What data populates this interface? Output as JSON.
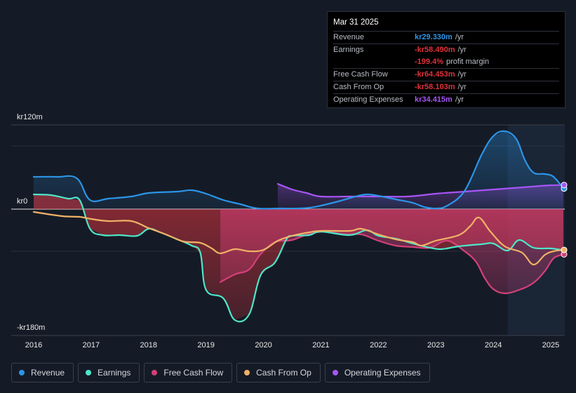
{
  "tooltip": {
    "date": "Mar 31 2025",
    "rows": [
      {
        "label": "Revenue",
        "value": "kr29.330m",
        "unit": "/yr",
        "color": "#2b95e8"
      },
      {
        "label": "Earnings",
        "value": "-kr58.490m",
        "unit": "/yr",
        "color": "#e0323c"
      },
      {
        "label": "",
        "value": "-199.4%",
        "unit": "profit margin",
        "color": "#e0323c"
      },
      {
        "label": "Free Cash Flow",
        "value": "-kr64.453m",
        "unit": "/yr",
        "color": "#e0323c"
      },
      {
        "label": "Cash From Op",
        "value": "-kr58.103m",
        "unit": "/yr",
        "color": "#e0323c"
      },
      {
        "label": "Operating Expenses",
        "value": "kr34.415m",
        "unit": "/yr",
        "color": "#a855f7"
      }
    ]
  },
  "legend": [
    {
      "label": "Revenue",
      "color": "#2b95e8"
    },
    {
      "label": "Earnings",
      "color": "#4ee6c8"
    },
    {
      "label": "Free Cash Flow",
      "color": "#d4407a"
    },
    {
      "label": "Cash From Op",
      "color": "#f0b266"
    },
    {
      "label": "Operating Expenses",
      "color": "#a855f7"
    }
  ],
  "chart_data": {
    "type": "line",
    "title": "",
    "xlabel": "",
    "ylabel": "",
    "ylim": [
      -180,
      120
    ],
    "xlim": [
      2015.85,
      2025.3
    ],
    "y_tick_labels": [
      {
        "value": 120,
        "label": "kr120m"
      },
      {
        "value": 0,
        "label": "kr0"
      },
      {
        "value": -180,
        "label": "-kr180m"
      }
    ],
    "x_tick_labels": [
      {
        "value": 2016,
        "label": "2016"
      },
      {
        "value": 2017,
        "label": "2017"
      },
      {
        "value": 2018,
        "label": "2018"
      },
      {
        "value": 2019,
        "label": "2019"
      },
      {
        "value": 2020,
        "label": "2020"
      },
      {
        "value": 2021,
        "label": "2021"
      },
      {
        "value": 2022,
        "label": "2022"
      },
      {
        "value": 2023,
        "label": "2023"
      },
      {
        "value": 2024,
        "label": "2024"
      },
      {
        "value": 2025,
        "label": "2025"
      }
    ],
    "highlight_start": 2024.25,
    "series": [
      {
        "name": "Revenue",
        "color": "#2b95e8",
        "fill": true,
        "points": [
          [
            2016.0,
            46
          ],
          [
            2016.4,
            46
          ],
          [
            2016.75,
            44
          ],
          [
            2016.98,
            13
          ],
          [
            2017.3,
            15
          ],
          [
            2017.7,
            18
          ],
          [
            2018.0,
            23
          ],
          [
            2018.5,
            25
          ],
          [
            2018.75,
            27
          ],
          [
            2019.0,
            22
          ],
          [
            2019.3,
            13
          ],
          [
            2019.6,
            7
          ],
          [
            2019.9,
            1
          ],
          [
            2020.3,
            1
          ],
          [
            2020.6,
            1
          ],
          [
            2020.8,
            2
          ],
          [
            2021.0,
            5
          ],
          [
            2021.3,
            11
          ],
          [
            2021.6,
            18
          ],
          [
            2021.8,
            21
          ],
          [
            2022.0,
            19
          ],
          [
            2022.3,
            14
          ],
          [
            2022.6,
            9
          ],
          [
            2022.8,
            3
          ],
          [
            2023.0,
            1
          ],
          [
            2023.2,
            5
          ],
          [
            2023.5,
            26
          ],
          [
            2023.8,
            78
          ],
          [
            2024.0,
            104
          ],
          [
            2024.2,
            111
          ],
          [
            2024.4,
            100
          ],
          [
            2024.55,
            70
          ],
          [
            2024.7,
            52
          ],
          [
            2024.9,
            50
          ],
          [
            2025.05,
            46
          ],
          [
            2025.22,
            29.3
          ]
        ]
      },
      {
        "name": "Earnings",
        "color": "#4ee6c8",
        "fill": true,
        "points": [
          [
            2016.0,
            21
          ],
          [
            2016.3,
            20
          ],
          [
            2016.6,
            15
          ],
          [
            2016.8,
            13
          ],
          [
            2016.98,
            -28
          ],
          [
            2017.2,
            -37
          ],
          [
            2017.5,
            -37
          ],
          [
            2017.8,
            -38
          ],
          [
            2018.0,
            -28
          ],
          [
            2018.2,
            -33
          ],
          [
            2018.5,
            -43
          ],
          [
            2018.75,
            -52
          ],
          [
            2018.9,
            -62
          ],
          [
            2019.0,
            -115
          ],
          [
            2019.3,
            -127
          ],
          [
            2019.5,
            -158
          ],
          [
            2019.75,
            -150
          ],
          [
            2019.95,
            -94
          ],
          [
            2020.2,
            -76
          ],
          [
            2020.4,
            -43
          ],
          [
            2020.5,
            -38
          ],
          [
            2020.8,
            -37
          ],
          [
            2021.0,
            -32
          ],
          [
            2021.5,
            -37
          ],
          [
            2021.8,
            -30
          ],
          [
            2022.0,
            -38
          ],
          [
            2022.3,
            -42
          ],
          [
            2022.6,
            -49
          ],
          [
            2022.9,
            -55
          ],
          [
            2023.1,
            -57
          ],
          [
            2023.4,
            -53
          ],
          [
            2023.8,
            -50
          ],
          [
            2024.0,
            -49
          ],
          [
            2024.25,
            -59
          ],
          [
            2024.45,
            -44
          ],
          [
            2024.7,
            -55
          ],
          [
            2025.0,
            -56
          ],
          [
            2025.22,
            -58.5
          ]
        ]
      },
      {
        "name": "Free Cash Flow",
        "color": "#d4407a",
        "fill": true,
        "points": [
          [
            2019.25,
            -104
          ],
          [
            2019.5,
            -93
          ],
          [
            2019.75,
            -86
          ],
          [
            2019.95,
            -64
          ],
          [
            2020.2,
            -47
          ],
          [
            2020.5,
            -44
          ],
          [
            2020.8,
            -35
          ],
          [
            2021.1,
            -32
          ],
          [
            2021.4,
            -36
          ],
          [
            2021.7,
            -36
          ],
          [
            2022.0,
            -45
          ],
          [
            2022.3,
            -52
          ],
          [
            2022.6,
            -54
          ],
          [
            2022.9,
            -55
          ],
          [
            2023.2,
            -45
          ],
          [
            2023.5,
            -60
          ],
          [
            2023.7,
            -75
          ],
          [
            2023.85,
            -98
          ],
          [
            2024.0,
            -114
          ],
          [
            2024.2,
            -120
          ],
          [
            2024.45,
            -115
          ],
          [
            2024.7,
            -105
          ],
          [
            2024.9,
            -88
          ],
          [
            2025.05,
            -70
          ],
          [
            2025.22,
            -64.5
          ]
        ]
      },
      {
        "name": "Cash From Op",
        "color": "#f0b266",
        "fill": false,
        "points": [
          [
            2016.0,
            -4
          ],
          [
            2016.5,
            -10
          ],
          [
            2016.8,
            -11
          ],
          [
            2017.0,
            -14
          ],
          [
            2017.3,
            -17
          ],
          [
            2017.7,
            -17
          ],
          [
            2018.0,
            -27
          ],
          [
            2018.3,
            -36
          ],
          [
            2018.6,
            -46
          ],
          [
            2018.9,
            -48
          ],
          [
            2019.1,
            -56
          ],
          [
            2019.25,
            -63
          ],
          [
            2019.5,
            -57
          ],
          [
            2019.75,
            -60
          ],
          [
            2020.0,
            -58
          ],
          [
            2020.25,
            -45
          ],
          [
            2020.5,
            -38
          ],
          [
            2020.8,
            -33
          ],
          [
            2021.0,
            -31
          ],
          [
            2021.5,
            -31
          ],
          [
            2021.7,
            -28
          ],
          [
            2022.0,
            -36
          ],
          [
            2022.3,
            -43
          ],
          [
            2022.6,
            -47
          ],
          [
            2022.75,
            -52
          ],
          [
            2023.0,
            -45
          ],
          [
            2023.4,
            -37
          ],
          [
            2023.6,
            -24
          ],
          [
            2023.75,
            -12
          ],
          [
            2023.95,
            -32
          ],
          [
            2024.2,
            -53
          ],
          [
            2024.5,
            -62
          ],
          [
            2024.7,
            -79
          ],
          [
            2024.9,
            -65
          ],
          [
            2025.05,
            -60
          ],
          [
            2025.22,
            -58.1
          ]
        ]
      },
      {
        "name": "Operating Expenses",
        "color": "#a855f7",
        "fill": true,
        "points": [
          [
            2020.25,
            36
          ],
          [
            2020.5,
            28
          ],
          [
            2020.75,
            23
          ],
          [
            2021.0,
            18
          ],
          [
            2021.5,
            18
          ],
          [
            2022.0,
            18
          ],
          [
            2022.5,
            18
          ],
          [
            2023.0,
            22
          ],
          [
            2023.5,
            25
          ],
          [
            2024.0,
            28
          ],
          [
            2024.5,
            31
          ],
          [
            2024.8,
            33
          ],
          [
            2025.0,
            34
          ],
          [
            2025.22,
            34.4
          ]
        ]
      }
    ]
  }
}
